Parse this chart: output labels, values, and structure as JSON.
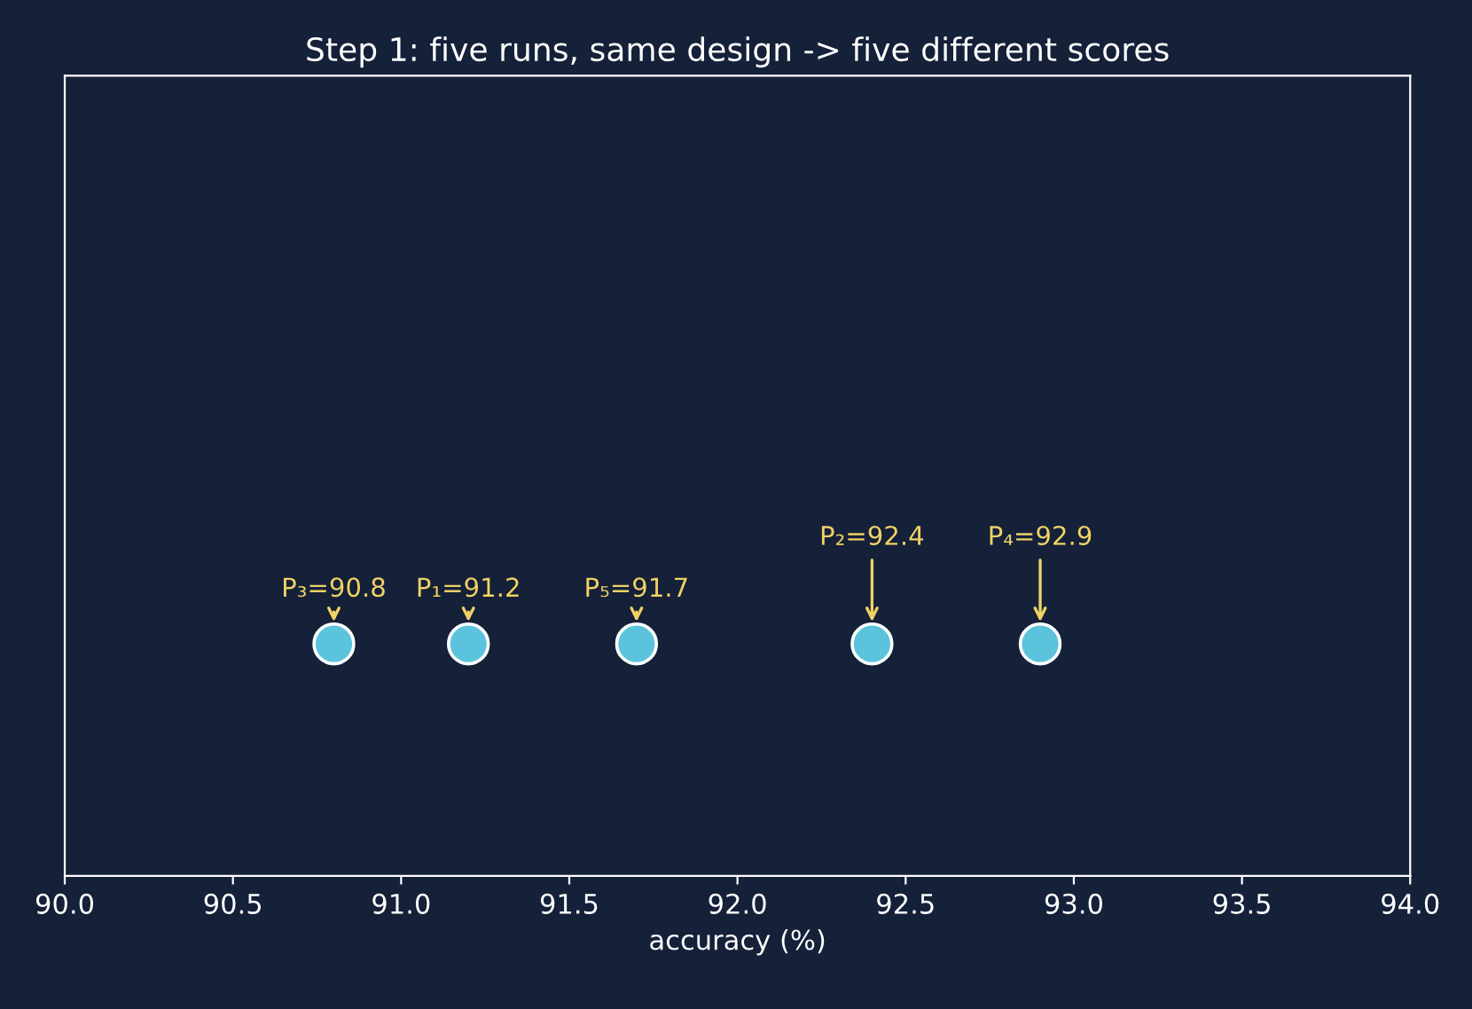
{
  "chart_data": {
    "type": "scatter",
    "orientation": "horizontal",
    "title": "Step 1: five runs, same design -> five different scores",
    "xlabel": "accuracy (%)",
    "categories": [
      null
    ],
    "series": [
      {
        "color": "#5bc4dc",
        "values": [
          91.2
        ],
        "value_labels": [
          "P₁=91.2"
        ]
      },
      {
        "color": "#5bc4dc",
        "values": [
          92.4
        ],
        "value_labels": [
          "P₂=92.4"
        ]
      },
      {
        "color": "#5bc4dc",
        "values": [
          90.8
        ],
        "value_labels": [
          "P₃=90.8"
        ]
      },
      {
        "color": "#5bc4dc",
        "values": [
          92.9
        ],
        "value_labels": [
          "P₄=92.9"
        ]
      },
      {
        "color": "#5bc4dc",
        "values": [
          91.7
        ],
        "value_labels": [
          "P₅=91.7"
        ]
      }
    ],
    "marker": "circle",
    "grid": false,
    "tick_labels": "x",
    "xlim": [
      90.0,
      94.0
    ],
    "xticks": [
      {
        "value": 90.0,
        "label": "90.0"
      },
      {
        "value": 90.5,
        "label": "90.5"
      },
      {
        "value": 91.0,
        "label": "91.0"
      },
      {
        "value": 91.5,
        "label": "91.5"
      },
      {
        "value": 92.0,
        "label": "92.0"
      },
      {
        "value": 92.5,
        "label": "92.5"
      },
      {
        "value": 93.0,
        "label": "93.0"
      },
      {
        "value": 93.5,
        "label": "93.5"
      },
      {
        "value": 94.0,
        "label": "94.0"
      }
    ]
  }
}
